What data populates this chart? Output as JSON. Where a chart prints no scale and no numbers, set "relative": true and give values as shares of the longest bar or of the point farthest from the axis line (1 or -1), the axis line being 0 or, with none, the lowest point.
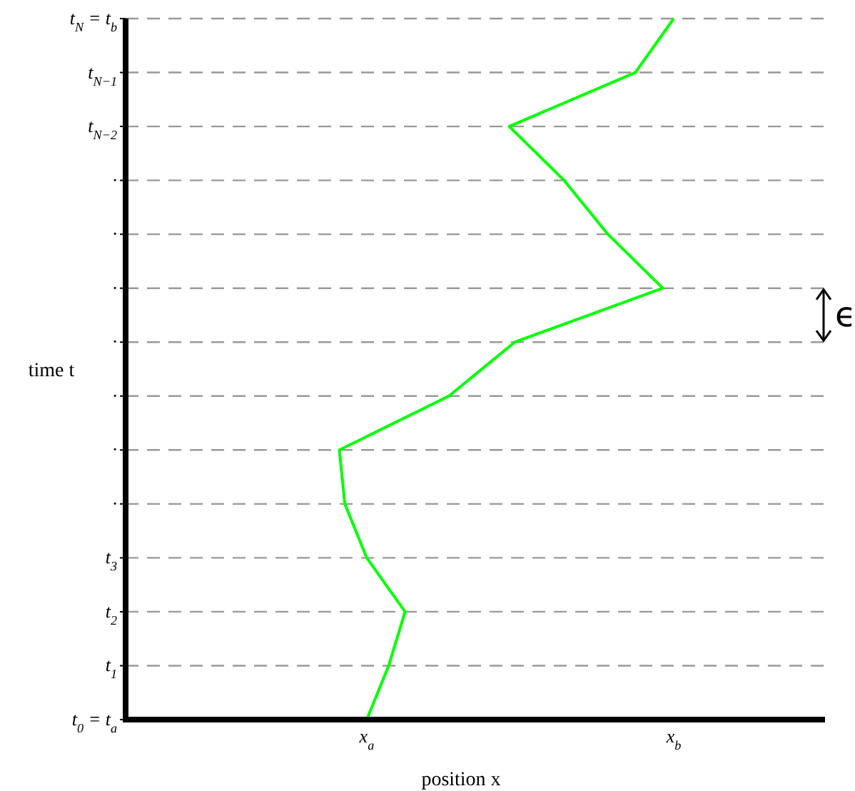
{
  "chart_data": {
    "type": "line",
    "orientation": "horizontal",
    "relative": true,
    "xlabel": "position x",
    "ylabel": "time t",
    "categories": [
      "t$_{N}$ = t$_{b}$",
      "t$_{N−1}$",
      "t$_{N−2}$",
      "·",
      "·",
      "·",
      "·",
      "·",
      "·",
      "·",
      "t$_{3}$",
      "t$_{2}$",
      "t$_{1}$",
      "t$_{0}$ = t$_{a}$"
    ],
    "series": [
      {
        "color": "#00ff00",
        "values": [
          1,
          0.93,
          0.7,
          0.8,
          0.88,
          0.98,
          0.71,
          0.59,
          0.39,
          0.4,
          0.44,
          0.51,
          0.48,
          0.44
        ]
      }
    ],
    "grid": "y",
    "line_style": "solid",
    "annotations": [
      "x$_{a}$",
      "x$_{b}$",
      "ϵ"
    ]
  }
}
